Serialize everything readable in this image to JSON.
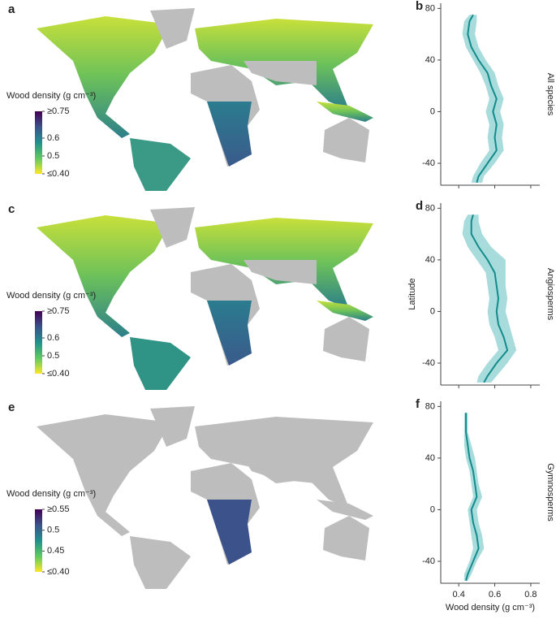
{
  "chart_data": [
    {
      "type": "line",
      "map_letter": "a",
      "profile_letter": "b",
      "row_label": "All species",
      "colorbar": {
        "title": "Wood density (g cm⁻³)",
        "lim": [
          0.4,
          0.75
        ],
        "ticks": [
          {
            "value": 0.75,
            "label": "≥0.75"
          },
          0.6,
          0.5,
          {
            "value": 0.4,
            "label": "≤0.40"
          }
        ]
      },
      "latitude": [
        75,
        70,
        60,
        50,
        40,
        30,
        20,
        10,
        0,
        -10,
        -20,
        -30,
        -40,
        -50,
        -55
      ],
      "values": [
        0.48,
        0.46,
        0.45,
        0.47,
        0.51,
        0.56,
        0.58,
        0.61,
        0.59,
        0.61,
        0.6,
        0.61,
        0.56,
        0.51,
        0.5
      ],
      "lower": [
        0.46,
        0.43,
        0.42,
        0.44,
        0.48,
        0.52,
        0.55,
        0.57,
        0.55,
        0.57,
        0.56,
        0.57,
        0.52,
        0.48,
        0.47
      ],
      "upper": [
        0.5,
        0.5,
        0.49,
        0.51,
        0.55,
        0.6,
        0.62,
        0.65,
        0.63,
        0.65,
        0.64,
        0.65,
        0.6,
        0.54,
        0.53
      ],
      "color": "#138b8b",
      "band_color": "#a8dcdc",
      "xlim": [
        0.3,
        0.85
      ],
      "xticks": [
        0.4,
        0.6,
        0.8
      ],
      "xticklabels": false,
      "ylim": [
        -57,
        84
      ],
      "yticks": [
        -40,
        0,
        40,
        80
      ]
    },
    {
      "type": "line",
      "map_letter": "c",
      "profile_letter": "d",
      "row_label": "Angiosperms",
      "ylabel": "Latitude",
      "colorbar": {
        "title": "Wood density (g cm⁻³)",
        "lim": [
          0.4,
          0.75
        ],
        "ticks": [
          {
            "value": 0.75,
            "label": "≥0.75"
          },
          0.6,
          0.5,
          {
            "value": 0.4,
            "label": "≤0.40"
          }
        ]
      },
      "latitude": [
        75,
        70,
        60,
        50,
        40,
        30,
        20,
        10,
        0,
        -10,
        -20,
        -30,
        -40,
        -50,
        -55
      ],
      "values": [
        0.48,
        0.47,
        0.47,
        0.51,
        0.56,
        0.6,
        0.61,
        0.62,
        0.61,
        0.62,
        0.65,
        0.67,
        0.61,
        0.56,
        0.54
      ],
      "lower": [
        0.45,
        0.43,
        0.42,
        0.45,
        0.5,
        0.55,
        0.56,
        0.57,
        0.56,
        0.57,
        0.6,
        0.62,
        0.56,
        0.51,
        0.5
      ],
      "upper": [
        0.51,
        0.51,
        0.53,
        0.58,
        0.66,
        0.66,
        0.66,
        0.67,
        0.66,
        0.68,
        0.7,
        0.72,
        0.67,
        0.61,
        0.58
      ],
      "color": "#138b8b",
      "band_color": "#a8dcdc",
      "xlim": [
        0.3,
        0.85
      ],
      "xticks": [
        0.4,
        0.6,
        0.8
      ],
      "xticklabels": false,
      "ylim": [
        -57,
        84
      ],
      "yticks": [
        -40,
        0,
        40,
        80
      ]
    },
    {
      "type": "line",
      "map_letter": "e",
      "profile_letter": "f",
      "row_label": "Gymnosperms",
      "xlabel": "Wood density (g cm⁻³)",
      "colorbar": {
        "title": "Wood density (g cm⁻³)",
        "lim": [
          0.4,
          0.55
        ],
        "ticks": [
          {
            "value": 0.55,
            "label": "≥0.55"
          },
          0.5,
          0.45,
          {
            "value": 0.4,
            "label": "≤0.40"
          }
        ]
      },
      "latitude": [
        75,
        70,
        60,
        50,
        40,
        30,
        20,
        10,
        0,
        -10,
        -20,
        -30,
        -40,
        -50,
        -55
      ],
      "values": [
        0.44,
        0.44,
        0.44,
        0.45,
        0.46,
        0.48,
        0.49,
        0.5,
        0.47,
        0.48,
        0.5,
        0.51,
        0.48,
        0.45,
        0.44
      ],
      "lower": [
        0.43,
        0.43,
        0.43,
        0.43,
        0.44,
        0.46,
        0.47,
        0.48,
        0.45,
        0.46,
        0.47,
        0.48,
        0.46,
        0.43,
        0.43
      ],
      "upper": [
        0.45,
        0.45,
        0.45,
        0.47,
        0.49,
        0.5,
        0.51,
        0.53,
        0.5,
        0.51,
        0.53,
        0.54,
        0.5,
        0.47,
        0.45
      ],
      "color": "#138b8b",
      "band_color": "#a8dcdc",
      "xlim": [
        0.3,
        0.85
      ],
      "xticks": [
        0.4,
        0.6,
        0.8
      ],
      "xticklabels": true,
      "ylim": [
        -57,
        84
      ],
      "yticks": [
        -40,
        0,
        40,
        80
      ]
    }
  ]
}
